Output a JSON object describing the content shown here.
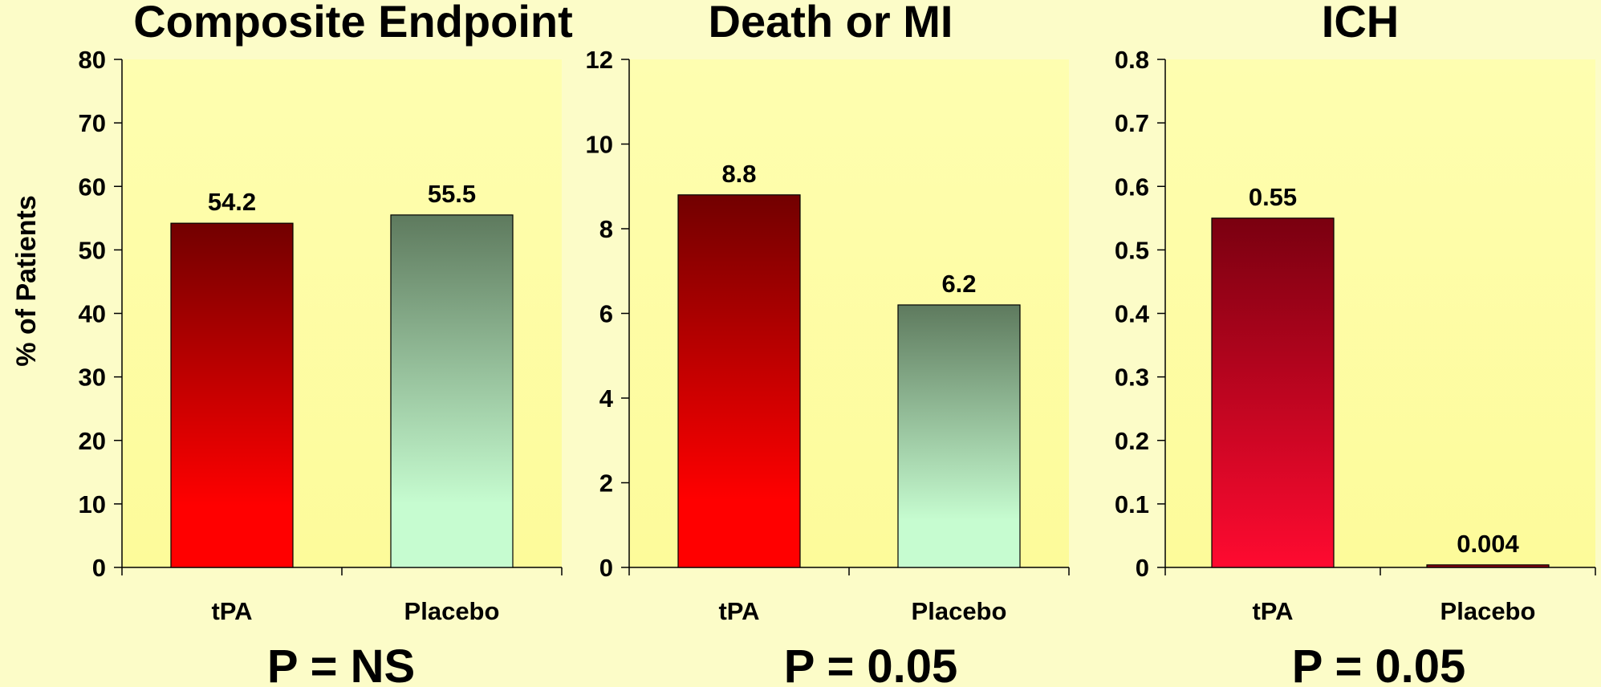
{
  "y_axis_label": "% of Patients",
  "colors": {
    "page_background": "#fcfcc8",
    "plot_top": "#fefeb0",
    "plot_bottom": "#fdfb9a",
    "tpa_top": "#720000",
    "tpa_bottom": "#ff0000",
    "ich_tpa_top": "#7a0010",
    "ich_tpa_bottom": "#ff0a30",
    "placebo_top": "#5e7a5e",
    "placebo_bottom": "#c6fcd0",
    "ich_placebo": "#8a0010"
  },
  "chart_data": [
    {
      "type": "bar",
      "title": "Composite Endpoint",
      "ylabel": "% of Patients",
      "categories": [
        "tPA",
        "Placebo"
      ],
      "values": [
        54.2,
        55.5
      ],
      "value_labels": [
        "54.2",
        "55.5"
      ],
      "ylim": [
        0,
        80
      ],
      "yticks": [
        0,
        10,
        20,
        30,
        40,
        50,
        60,
        70,
        80
      ],
      "ytick_labels": [
        "0",
        "10",
        "20",
        "30",
        "40",
        "50",
        "60",
        "70",
        "80"
      ],
      "grid": false,
      "footer": "P = NS"
    },
    {
      "type": "bar",
      "title": "Death or MI",
      "ylabel": "",
      "categories": [
        "tPA",
        "Placebo"
      ],
      "values": [
        8.8,
        6.2
      ],
      "value_labels": [
        "8.8",
        "6.2"
      ],
      "ylim": [
        0,
        12
      ],
      "yticks": [
        0,
        2,
        4,
        6,
        8,
        10,
        12
      ],
      "ytick_labels": [
        "0",
        "2",
        "4",
        "6",
        "8",
        "10",
        "12"
      ],
      "grid": false,
      "footer": "P = 0.05"
    },
    {
      "type": "bar",
      "title": "ICH",
      "ylabel": "",
      "categories": [
        "tPA",
        "Placebo"
      ],
      "values": [
        0.55,
        0.004
      ],
      "value_labels": [
        "0.55",
        "0.004"
      ],
      "ylim": [
        0,
        0.8
      ],
      "yticks": [
        0,
        0.1,
        0.2,
        0.3,
        0.4,
        0.5,
        0.6,
        0.7,
        0.8
      ],
      "ytick_labels": [
        "0",
        "0.1",
        "0.2",
        "0.3",
        "0.4",
        "0.5",
        "0.6",
        "0.7",
        "0.8"
      ],
      "grid": false,
      "footer": "P = 0.05"
    }
  ]
}
